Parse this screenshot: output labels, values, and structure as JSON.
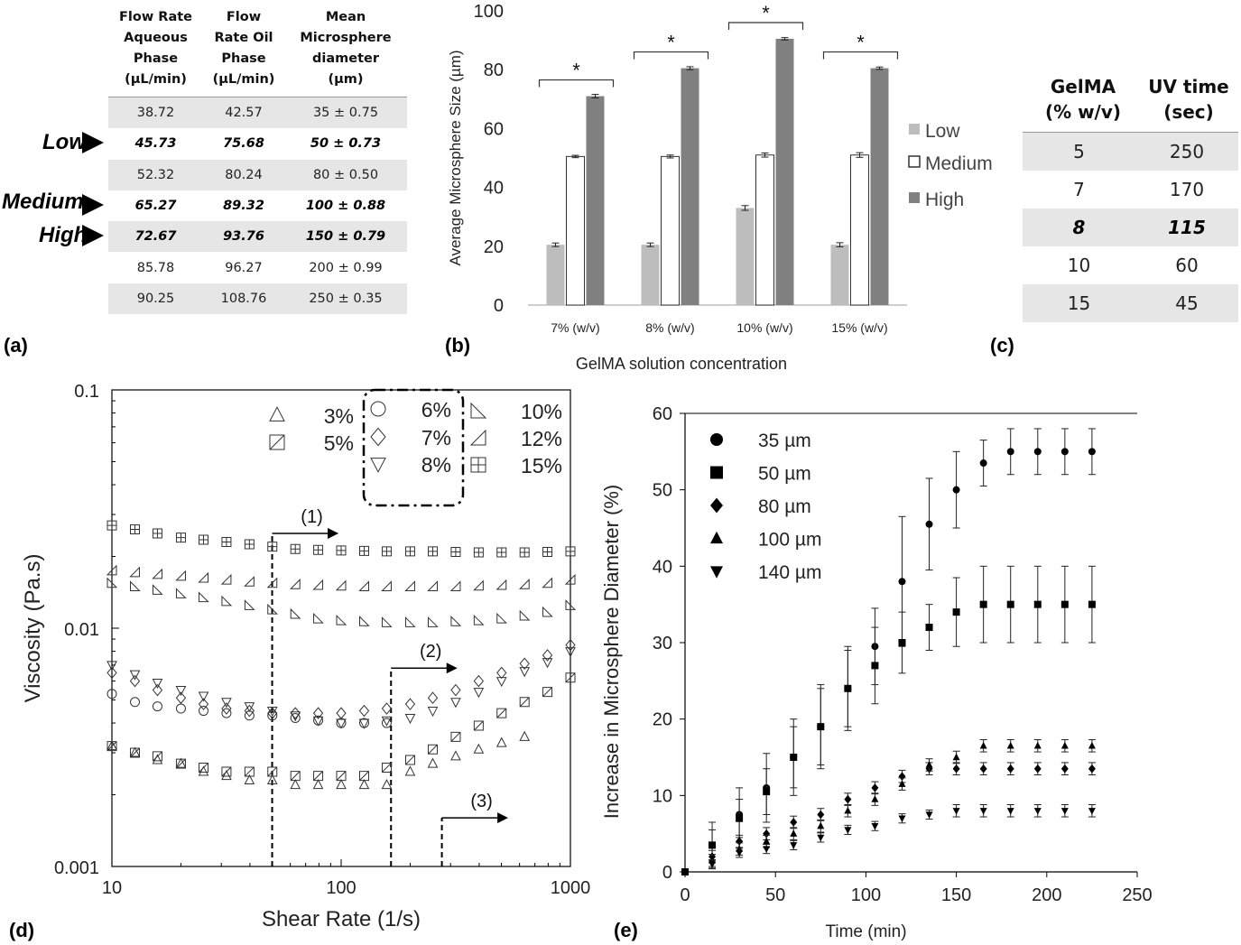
{
  "panel_labels": {
    "a": "(a)",
    "b": "(b)",
    "c": "(c)",
    "d": "(d)",
    "e": "(e)"
  },
  "table_a": {
    "headers": [
      [
        "Flow Rate",
        "Aqueous",
        "Phase",
        "(µL/min)"
      ],
      [
        "Flow",
        "Rate Oil",
        "Phase",
        "(µL/min)"
      ],
      [
        "Mean",
        "Microsphere",
        "diameter",
        "(µm)"
      ]
    ],
    "rows": [
      [
        "38.72",
        "42.57",
        "35 ± 0.75"
      ],
      [
        "45.73",
        "75.68",
        "50 ± 0.73"
      ],
      [
        "52.32",
        "80.24",
        "80 ± 0.50"
      ],
      [
        "65.27",
        "89.32",
        "100 ± 0.88"
      ],
      [
        "72.67",
        "93.76",
        "150 ± 0.79"
      ],
      [
        "85.78",
        "96.27",
        "200 ± 0.99"
      ],
      [
        "90.25",
        "108.76",
        "250 ± 0.35"
      ]
    ],
    "arrow_labels": [
      "Low",
      "Medium",
      "High"
    ]
  },
  "table_c": {
    "headers": [
      [
        "GelMA",
        "(% w/v)"
      ],
      [
        "UV time",
        "(sec)"
      ]
    ],
    "rows": [
      [
        "5",
        "250"
      ],
      [
        "7",
        "170"
      ],
      [
        "8",
        "115"
      ],
      [
        "10",
        "60"
      ],
      [
        "15",
        "45"
      ]
    ]
  },
  "chart_data": [
    {
      "panel": "b",
      "type": "bar",
      "xlabel": "GelMA solution concentration",
      "ylabel": "Average Microsphere Size (µm)",
      "ylim": [
        0,
        100
      ],
      "yticks": [
        "0",
        "20",
        "40",
        "60",
        "80",
        "100"
      ],
      "categories": [
        "7% (w/v)",
        "8% (w/v)",
        "10% (w/v)",
        "15% (w/v)"
      ],
      "series": [
        {
          "name": "Low",
          "color": "#bdbdbd",
          "values": [
            20.5,
            20.5,
            33,
            20.5
          ],
          "errors": [
            0.6,
            0.6,
            0.8,
            0.7
          ]
        },
        {
          "name": "Medium",
          "color": "#ffffff",
          "values": [
            50.5,
            50.5,
            51,
            51
          ],
          "errors": [
            0.4,
            0.5,
            0.7,
            0.8
          ]
        },
        {
          "name": "High",
          "color": "#808080",
          "values": [
            71,
            80.5,
            90.5,
            80.5
          ],
          "errors": [
            0.6,
            0.5,
            0.4,
            0.4
          ]
        }
      ],
      "significance": [
        "*",
        "*",
        "*",
        "*"
      ]
    },
    {
      "panel": "d",
      "type": "scatter",
      "xscale": "log",
      "yscale": "log",
      "xlabel": "Shear Rate (1/s)",
      "ylabel": "Viscosity (Pa.s)",
      "xlim": [
        10,
        1000
      ],
      "ylim": [
        0.001,
        0.1
      ],
      "xticks": [
        "10",
        "100",
        "1000"
      ],
      "yticks": [
        "0.001",
        "0.01",
        "0.1"
      ],
      "regions": [
        {
          "label": "(1)",
          "x": 50,
          "ymax": 0.025
        },
        {
          "label": "(2)",
          "x": 165,
          "ymax": 0.0068
        },
        {
          "label": "(3)",
          "x": 275,
          "ymax": 0.0016
        }
      ],
      "series": [
        {
          "name": "3%",
          "marker": "triangle-up",
          "x": [
            10,
            12.6,
            15.8,
            20,
            25.1,
            31.6,
            39.8,
            50.1,
            63.1,
            79.4,
            100,
            126,
            158,
            200,
            251,
            316,
            398,
            501,
            631
          ],
          "y": [
            0.0032,
            0.003,
            0.0028,
            0.0027,
            0.0025,
            0.0024,
            0.0023,
            0.0023,
            0.0022,
            0.0022,
            0.0022,
            0.0022,
            0.0022,
            0.0025,
            0.0027,
            0.0029,
            0.0031,
            0.0033,
            0.0035
          ]
        },
        {
          "name": "5%",
          "marker": "square-slash",
          "x": [
            10,
            12.6,
            15.8,
            20,
            25.1,
            31.6,
            39.8,
            50.1,
            63.1,
            79.4,
            100,
            126,
            158,
            200,
            251,
            316,
            398,
            501,
            631,
            794,
            1000
          ],
          "y": [
            0.0032,
            0.003,
            0.0029,
            0.0027,
            0.0026,
            0.0025,
            0.0025,
            0.0025,
            0.0024,
            0.0024,
            0.0024,
            0.0024,
            0.0026,
            0.0028,
            0.0031,
            0.0035,
            0.0039,
            0.0044,
            0.0049,
            0.0054,
            0.0062
          ]
        },
        {
          "name": "6%",
          "marker": "circle",
          "x": [
            10,
            12.6,
            15.8,
            20,
            25.1,
            31.6,
            39.8,
            50.1,
            63.1,
            79.4,
            100,
            126,
            158
          ],
          "y": [
            0.0053,
            0.0049,
            0.0047,
            0.0046,
            0.0045,
            0.0044,
            0.0043,
            0.0043,
            0.0042,
            0.0041,
            0.004,
            0.004,
            0.004
          ]
        },
        {
          "name": "7%",
          "marker": "diamond",
          "x": [
            10,
            12.6,
            15.8,
            20,
            25.1,
            31.6,
            39.8,
            50.1,
            63.1,
            79.4,
            100,
            126,
            158,
            200,
            251,
            316,
            398,
            501,
            631,
            794,
            1000
          ],
          "y": [
            0.0065,
            0.006,
            0.0055,
            0.0051,
            0.0048,
            0.0046,
            0.0045,
            0.0044,
            0.0044,
            0.0044,
            0.0044,
            0.0045,
            0.0046,
            0.0048,
            0.0051,
            0.0055,
            0.006,
            0.0065,
            0.0071,
            0.0077,
            0.0085
          ]
        },
        {
          "name": "8%",
          "marker": "triangle-down",
          "x": [
            10,
            12.6,
            15.8,
            20,
            25.1,
            31.6,
            39.8,
            50.1,
            63.1,
            79.4,
            100,
            126,
            158,
            200,
            251,
            316,
            398,
            501,
            631,
            794,
            1000
          ],
          "y": [
            0.007,
            0.0064,
            0.0059,
            0.0055,
            0.0052,
            0.0049,
            0.0047,
            0.0045,
            0.0043,
            0.0041,
            0.004,
            0.004,
            0.0041,
            0.0042,
            0.0045,
            0.0049,
            0.0054,
            0.006,
            0.0066,
            0.0072,
            0.008
          ]
        },
        {
          "name": "10%",
          "marker": "right-triangle",
          "x": [
            10,
            12.6,
            15.8,
            20,
            25.1,
            31.6,
            39.8,
            50.1,
            63.1,
            79.4,
            100,
            126,
            158,
            200,
            251,
            316,
            398,
            501,
            631,
            794,
            1000
          ],
          "y": [
            0.0155,
            0.015,
            0.0145,
            0.014,
            0.0135,
            0.013,
            0.0125,
            0.012,
            0.0115,
            0.011,
            0.0108,
            0.0107,
            0.0106,
            0.0106,
            0.0106,
            0.0107,
            0.0108,
            0.011,
            0.0113,
            0.0117,
            0.0125
          ]
        },
        {
          "name": "12%",
          "marker": "left-triangle",
          "x": [
            10,
            12.6,
            15.8,
            20,
            25.1,
            31.6,
            39.8,
            50.1,
            63.1,
            79.4,
            100,
            126,
            158,
            200,
            251,
            316,
            398,
            501,
            631,
            794,
            1000
          ],
          "y": [
            0.0175,
            0.0172,
            0.0169,
            0.0166,
            0.0163,
            0.016,
            0.0157,
            0.0155,
            0.0153,
            0.0152,
            0.0151,
            0.015,
            0.015,
            0.015,
            0.015,
            0.015,
            0.0151,
            0.0152,
            0.0153,
            0.0155,
            0.016
          ]
        },
        {
          "name": "15%",
          "marker": "square-plus",
          "x": [
            10,
            12.6,
            15.8,
            20,
            25.1,
            31.6,
            39.8,
            50.1,
            63.1,
            79.4,
            100,
            126,
            158,
            200,
            251,
            316,
            398,
            501,
            631,
            794,
            1000
          ],
          "y": [
            0.027,
            0.026,
            0.025,
            0.024,
            0.0235,
            0.023,
            0.0225,
            0.022,
            0.0215,
            0.0213,
            0.0212,
            0.0211,
            0.021,
            0.021,
            0.021,
            0.0209,
            0.0208,
            0.0208,
            0.0208,
            0.0209,
            0.021
          ]
        }
      ]
    },
    {
      "panel": "e",
      "type": "scatter",
      "xlabel": "Time (min)",
      "ylabel": "Increase in Microsphere Diameter (%)",
      "xlim": [
        0,
        250
      ],
      "ylim": [
        0,
        60
      ],
      "xticks": [
        "0",
        "50",
        "100",
        "150",
        "200",
        "250"
      ],
      "yticks": [
        "0",
        "10",
        "20",
        "30",
        "40",
        "50",
        "60"
      ],
      "series": [
        {
          "name": "35 µm",
          "marker": "circle",
          "x": [
            0,
            15,
            30,
            45,
            60,
            75,
            90,
            105,
            120,
            135,
            150,
            165,
            180,
            195,
            210,
            225
          ],
          "y": [
            0,
            3.5,
            7.5,
            11,
            15,
            19,
            24,
            29.5,
            38,
            45.5,
            50,
            53.5,
            55,
            55,
            55,
            55
          ],
          "err": [
            0,
            3,
            3.5,
            4.5,
            5,
            5.5,
            5.5,
            5,
            8.5,
            6,
            5,
            3,
            3,
            3,
            3,
            3
          ]
        },
        {
          "name": "50 µm",
          "marker": "square",
          "x": [
            0,
            15,
            30,
            45,
            60,
            75,
            90,
            105,
            120,
            135,
            150,
            165,
            180,
            195,
            210,
            225
          ],
          "y": [
            0,
            3.5,
            7,
            10.5,
            15,
            19,
            24,
            27,
            30,
            32,
            34,
            35,
            35,
            35,
            35,
            35
          ],
          "err": [
            0,
            2,
            2.5,
            3,
            4,
            5,
            5,
            5,
            4,
            3,
            4.5,
            5,
            5,
            5,
            5,
            5
          ]
        },
        {
          "name": "80 µm",
          "marker": "diamond",
          "x": [
            0,
            15,
            30,
            45,
            60,
            75,
            90,
            105,
            120,
            135,
            150,
            165,
            180,
            195,
            210,
            225
          ],
          "y": [
            0,
            2,
            4,
            5,
            6.5,
            7.5,
            9.5,
            11,
            12.5,
            13.5,
            13.5,
            13.5,
            13.5,
            13.5,
            13.5,
            13.5
          ],
          "err": [
            0,
            0.8,
            0.8,
            0.8,
            0.8,
            0.8,
            0.8,
            0.8,
            0.8,
            0.8,
            0.8,
            0.8,
            0.8,
            0.8,
            0.8,
            0.8
          ]
        },
        {
          "name": "100 µm",
          "marker": "triangle-up",
          "x": [
            0,
            15,
            30,
            45,
            60,
            75,
            90,
            105,
            120,
            135,
            150,
            165,
            180,
            195,
            210,
            225
          ],
          "y": [
            0,
            1.5,
            3,
            4,
            5,
            6,
            8,
            9.5,
            11.5,
            14,
            15,
            16.5,
            16.5,
            16.5,
            16.5,
            16.5
          ],
          "err": [
            0,
            0.8,
            0.8,
            0.8,
            0.8,
            0.8,
            0.8,
            0.8,
            0.8,
            0.8,
            0.8,
            0.8,
            0.8,
            0.8,
            0.8,
            0.8
          ]
        },
        {
          "name": "140 µm",
          "marker": "triangle-down",
          "x": [
            0,
            15,
            30,
            45,
            60,
            75,
            90,
            105,
            120,
            135,
            150,
            165,
            180,
            195,
            210,
            225
          ],
          "y": [
            0,
            1,
            2.5,
            3,
            3.5,
            4.5,
            5.5,
            6,
            7,
            7.5,
            8,
            8,
            8,
            8,
            8,
            8
          ],
          "err": [
            0,
            0.6,
            0.6,
            0.6,
            0.6,
            0.6,
            0.6,
            0.6,
            0.6,
            0.6,
            0.8,
            0.8,
            0.8,
            0.8,
            0.8,
            0.8
          ]
        }
      ]
    }
  ]
}
